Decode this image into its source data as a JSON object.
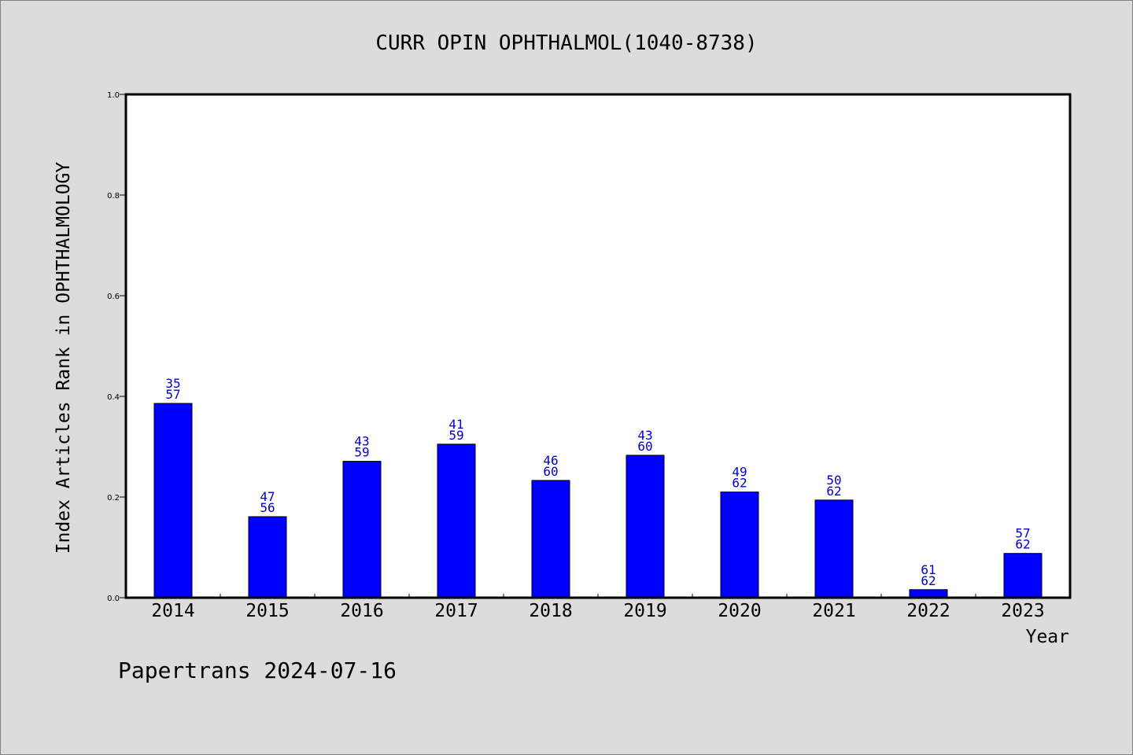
{
  "chart_data": {
    "type": "bar",
    "title": "CURR OPIN OPHTHALMOL(1040-8738)",
    "xlabel": "Year",
    "ylabel": "Index Articles Rank in OPHTHALMOLOGY",
    "categories": [
      "2014",
      "2015",
      "2016",
      "2017",
      "2018",
      "2019",
      "2020",
      "2021",
      "2022",
      "2023"
    ],
    "values": [
      0.386,
      0.161,
      0.271,
      0.305,
      0.233,
      0.283,
      0.21,
      0.194,
      0.016,
      0.088
    ],
    "rank_labels": [
      [
        "35",
        "57"
      ],
      [
        "47",
        "56"
      ],
      [
        "43",
        "59"
      ],
      [
        "41",
        "59"
      ],
      [
        "46",
        "60"
      ],
      [
        "43",
        "60"
      ],
      [
        "49",
        "62"
      ],
      [
        "50",
        "62"
      ],
      [
        "61",
        "62"
      ],
      [
        "57",
        "62"
      ]
    ],
    "ylim": [
      0,
      1.0
    ],
    "yticks": [
      "0.0",
      "0.2",
      "0.4",
      "0.6",
      "0.8",
      "1.0"
    ],
    "grid": false,
    "bar_color": "#0000ff",
    "label_color": "#0000cc"
  },
  "footer": "Papertrans 2024-07-16"
}
